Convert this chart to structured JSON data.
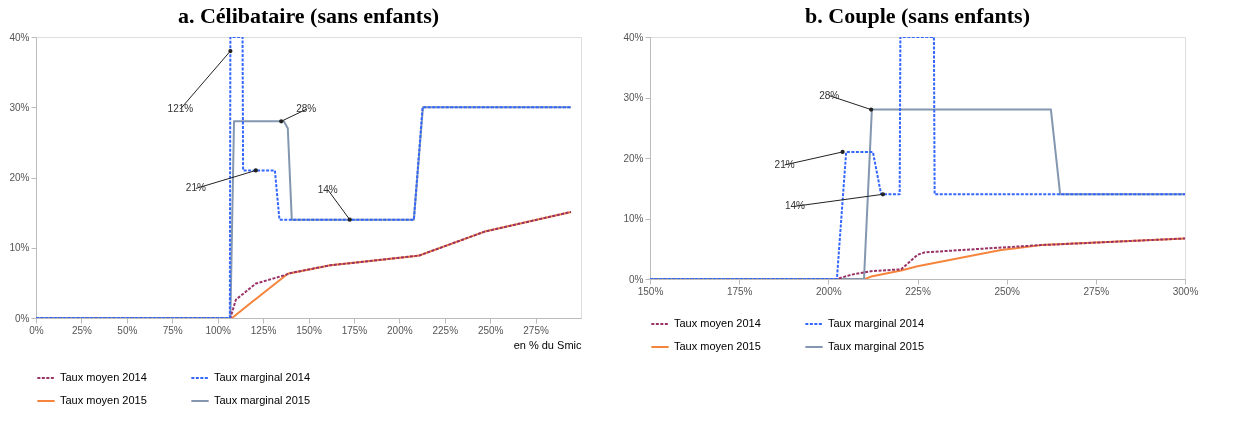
{
  "chart_data": [
    {
      "type": "line",
      "title": "a.   Célibataire (sans enfants)",
      "xlabel": "en % du Smic",
      "xlim": [
        0,
        300
      ],
      "xticks": [
        {
          "value": 0,
          "label": "0%"
        },
        {
          "value": 25,
          "label": "25%"
        },
        {
          "value": 50,
          "label": "50%"
        },
        {
          "value": 75,
          "label": "75%"
        },
        {
          "value": 100,
          "label": "100%"
        },
        {
          "value": 125,
          "label": "125%"
        },
        {
          "value": 150,
          "label": "150%"
        },
        {
          "value": 175,
          "label": "175%"
        },
        {
          "value": 200,
          "label": "200%"
        },
        {
          "value": 225,
          "label": "225%"
        },
        {
          "value": 250,
          "label": "250%"
        },
        {
          "value": 275,
          "label": "275%"
        }
      ],
      "ylim": [
        0,
        40
      ],
      "yticks": [
        {
          "value": 0,
          "label": "0%"
        },
        {
          "value": 10,
          "label": "10%"
        },
        {
          "value": 20,
          "label": "20%"
        },
        {
          "value": 30,
          "label": "30%"
        },
        {
          "value": 40,
          "label": "40%"
        }
      ],
      "grid": false,
      "legend": "bottom",
      "series": [
        {
          "name": "Taux moyen 2014",
          "color": "#993366",
          "line_style": "dashed",
          "x": [
            0,
            107,
            110,
            121,
            137,
            140,
            162,
            208,
            211,
            247,
            294.5
          ],
          "values": [
            0,
            0,
            2.6,
            4.9,
            6.1,
            6.4,
            7.5,
            8.8,
            8.9,
            12.3,
            15.1
          ]
        },
        {
          "name": "Taux marginal 2014",
          "color": "#3366ff",
          "line_style": "dashed",
          "x": [
            0,
            106.7,
            107,
            113.7,
            114,
            131.5,
            134,
            208,
            212.8,
            294.5
          ],
          "values": [
            0,
            0,
            40,
            40,
            21,
            21,
            14,
            14,
            30,
            30
          ]
        },
        {
          "name": "Taux moyen 2015",
          "color": "#f5843c",
          "line_style": "solid",
          "x": [
            0,
            107.9,
            122.4,
            138.6,
            162,
            208,
            211,
            247,
            294.5
          ],
          "values": [
            0,
            0,
            3,
            6.3,
            7.5,
            8.8,
            8.9,
            12.3,
            15.1
          ]
        },
        {
          "name": "Taux marginal 2015",
          "color": "#8497b0",
          "line_style": "solid",
          "x": [
            0,
            107,
            109,
            136.4,
            138.6,
            140.8,
            208,
            213,
            294.5
          ],
          "values": [
            0,
            0,
            28,
            28,
            27,
            14,
            14,
            30,
            30
          ]
        }
      ],
      "annotations": [
        {
          "text": "121%",
          "x": 107,
          "y": 38
        },
        {
          "text": "28%",
          "x": 135,
          "y": 28
        },
        {
          "text": "21%",
          "x": 121,
          "y": 21
        },
        {
          "text": "14%",
          "x": 172.7,
          "y": 14
        }
      ]
    },
    {
      "type": "line",
      "title": "b.   Couple (sans enfants)",
      "xlim": [
        150,
        300
      ],
      "xticks": [
        {
          "value": 150,
          "label": "150%"
        },
        {
          "value": 175,
          "label": "175%"
        },
        {
          "value": 200,
          "label": "200%"
        },
        {
          "value": 225,
          "label": "225%"
        },
        {
          "value": 250,
          "label": "250%"
        },
        {
          "value": 275,
          "label": "275%"
        },
        {
          "value": 300,
          "label": "300%"
        }
      ],
      "ylim": [
        0,
        40
      ],
      "yticks": [
        {
          "value": 0,
          "label": "0%"
        },
        {
          "value": 10,
          "label": "10%"
        },
        {
          "value": 20,
          "label": "20%"
        },
        {
          "value": 30,
          "label": "30%"
        },
        {
          "value": 40,
          "label": "40%"
        }
      ],
      "grid": false,
      "legend": "bottom",
      "series": [
        {
          "name": "Taux moyen 2014",
          "color": "#993366",
          "line_style": "dashed",
          "x": [
            150,
            202.4,
            206.4,
            212,
            220.4,
            225,
            227,
            248.4,
            259.6,
            300
          ],
          "values": [
            0,
            0,
            0.7,
            1.3,
            1.6,
            4,
            4.4,
            5.2,
            5.6,
            6.7
          ]
        },
        {
          "name": "Taux marginal 2014",
          "color": "#3366ff",
          "line_style": "dashed",
          "x": [
            150,
            202.4,
            205,
            212.5,
            214.8,
            220,
            220.2,
            229.6,
            229.8,
            300
          ],
          "values": [
            0,
            0,
            21,
            21,
            14,
            14,
            40,
            40,
            14,
            14
          ]
        },
        {
          "name": "Taux moyen 2015",
          "color": "#f5843c",
          "line_style": "solid",
          "x": [
            150,
            210.3,
            212,
            220.4,
            225,
            248.4,
            259.6,
            300
          ],
          "values": [
            0,
            0,
            0.4,
            1.4,
            2.1,
            4.8,
            5.6,
            6.7
          ]
        },
        {
          "name": "Taux marginal 2015",
          "color": "#8497b0",
          "line_style": "solid",
          "x": [
            150,
            210,
            212.2,
            262.4,
            265,
            300
          ],
          "values": [
            0,
            0,
            28,
            28,
            14,
            14
          ]
        }
      ],
      "annotations": [
        {
          "text": "28%",
          "x": 212,
          "y": 28
        },
        {
          "text": "21%",
          "x": 204,
          "y": 21
        },
        {
          "text": "14%",
          "x": 215.3,
          "y": 14
        }
      ]
    }
  ]
}
